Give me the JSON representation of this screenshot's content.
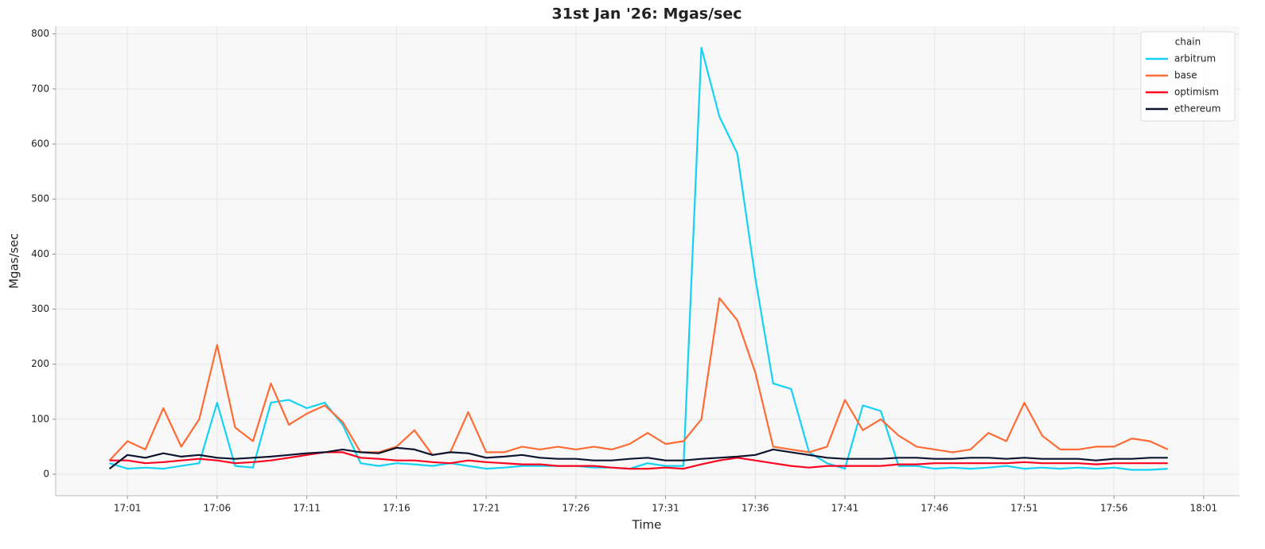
{
  "chart_data": {
    "type": "line",
    "title": "31st Jan '26: Mgas/sec",
    "x_label": "Time",
    "y_label": "Mgas/sec",
    "x": [
      "17:00",
      "17:01",
      "17:02",
      "17:03",
      "17:04",
      "17:05",
      "17:06",
      "17:07",
      "17:08",
      "17:09",
      "17:10",
      "17:11",
      "17:12",
      "17:13",
      "17:14",
      "17:15",
      "17:16",
      "17:17",
      "17:18",
      "17:19",
      "17:20",
      "17:21",
      "17:22",
      "17:23",
      "17:24",
      "17:25",
      "17:26",
      "17:27",
      "17:28",
      "17:29",
      "17:30",
      "17:31",
      "17:32",
      "17:33",
      "17:34",
      "17:35",
      "17:36",
      "17:37",
      "17:38",
      "17:39",
      "17:40",
      "17:41",
      "17:42",
      "17:43",
      "17:44",
      "17:45",
      "17:46",
      "17:47",
      "17:48",
      "17:49",
      "17:50",
      "17:51",
      "17:52",
      "17:53",
      "17:54",
      "17:55",
      "17:56",
      "17:57",
      "17:58",
      "17:59"
    ],
    "series": [
      {
        "name": "arbitrum",
        "color": "#14d2f5",
        "values": [
          20,
          10,
          12,
          10,
          15,
          20,
          130,
          15,
          12,
          130,
          135,
          120,
          130,
          90,
          20,
          15,
          20,
          18,
          15,
          20,
          15,
          10,
          12,
          15,
          15,
          15,
          15,
          12,
          12,
          10,
          20,
          15,
          15,
          775,
          650,
          583,
          357,
          165,
          155,
          40,
          20,
          10,
          125,
          115,
          15,
          15,
          10,
          12,
          10,
          12,
          15,
          10,
          12,
          10,
          12,
          10,
          12,
          8,
          8,
          10
        ]
      },
      {
        "name": "base",
        "color": "#ff6b35",
        "values": [
          25,
          60,
          45,
          120,
          50,
          100,
          235,
          85,
          60,
          165,
          90,
          110,
          125,
          95,
          40,
          40,
          50,
          80,
          35,
          40,
          113,
          40,
          40,
          50,
          45,
          50,
          45,
          50,
          45,
          55,
          75,
          55,
          60,
          100,
          320,
          280,
          185,
          50,
          45,
          40,
          50,
          135,
          80,
          100,
          70,
          50,
          45,
          40,
          45,
          75,
          60,
          130,
          70,
          45,
          45,
          50,
          50,
          65,
          60,
          45
        ]
      },
      {
        "name": "optimism",
        "color": "#ff0420",
        "values": [
          25,
          25,
          20,
          22,
          25,
          28,
          25,
          20,
          22,
          25,
          30,
          35,
          40,
          40,
          30,
          28,
          25,
          25,
          22,
          20,
          25,
          22,
          20,
          18,
          18,
          15,
          15,
          15,
          12,
          10,
          10,
          12,
          10,
          18,
          25,
          30,
          25,
          20,
          15,
          12,
          15,
          15,
          15,
          15,
          18,
          18,
          20,
          20,
          20,
          20,
          20,
          22,
          20,
          20,
          20,
          18,
          20,
          20,
          20,
          20
        ]
      },
      {
        "name": "ethereum",
        "color": "#0e1530",
        "values": [
          10,
          35,
          30,
          38,
          32,
          35,
          30,
          28,
          30,
          32,
          35,
          38,
          40,
          45,
          40,
          38,
          48,
          45,
          35,
          40,
          38,
          30,
          32,
          35,
          30,
          28,
          28,
          25,
          25,
          28,
          30,
          25,
          25,
          28,
          30,
          32,
          35,
          45,
          40,
          35,
          30,
          28,
          28,
          28,
          30,
          30,
          28,
          28,
          30,
          30,
          28,
          30,
          28,
          28,
          28,
          25,
          28,
          28,
          30,
          30
        ]
      }
    ],
    "xlim": [
      "16:57",
      "18:03"
    ],
    "xticks": [
      "17:01",
      "17:06",
      "17:11",
      "17:16",
      "17:21",
      "17:26",
      "17:31",
      "17:36",
      "17:41",
      "17:46",
      "17:51",
      "17:56",
      "18:01"
    ],
    "ylim": [
      -39,
      814
    ],
    "yticks": [
      0,
      100,
      200,
      300,
      400,
      500,
      600,
      700,
      800
    ],
    "grid": true,
    "legend_title": "chain",
    "legend": "upper right"
  }
}
